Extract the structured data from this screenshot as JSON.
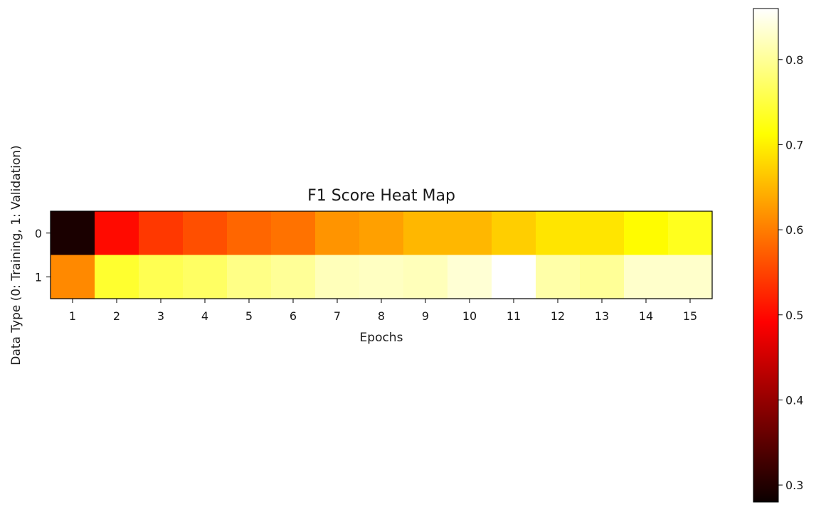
{
  "chart_data": {
    "type": "heatmap",
    "title": "F1 Score Heat Map",
    "xlabel": "Epochs",
    "ylabel": "Data Type (0: Training, 1: Validation)",
    "x_categories": [
      "1",
      "2",
      "3",
      "4",
      "5",
      "6",
      "7",
      "8",
      "9",
      "10",
      "11",
      "12",
      "13",
      "14",
      "15"
    ],
    "y_categories": [
      "0",
      "1"
    ],
    "values": [
      [
        0.28,
        0.5,
        0.54,
        0.56,
        0.58,
        0.59,
        0.62,
        0.63,
        0.65,
        0.65,
        0.67,
        0.69,
        0.69,
        0.71,
        0.73
      ],
      [
        0.61,
        0.74,
        0.76,
        0.77,
        0.79,
        0.8,
        0.82,
        0.825,
        0.82,
        0.835,
        0.86,
        0.81,
        0.8,
        0.83,
        0.83
      ]
    ],
    "colormap": "hot",
    "vmin": 0.28,
    "vmax": 0.86,
    "colorbar": {
      "ticks": [
        0.3,
        0.4,
        0.5,
        0.6,
        0.7,
        0.8
      ],
      "tick_labels": [
        "0.3",
        "0.4",
        "0.5",
        "0.6",
        "0.7",
        "0.8"
      ]
    },
    "grid": false
  }
}
